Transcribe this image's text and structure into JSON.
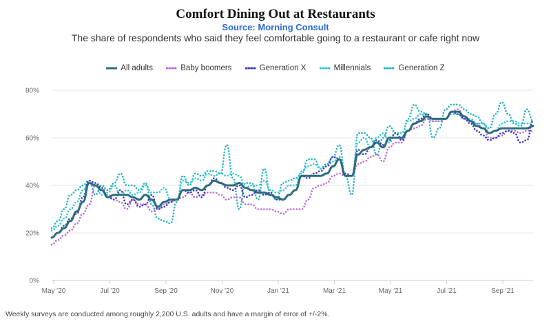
{
  "chart_data": {
    "type": "line",
    "title": "Comfort Dining Out at Restaurants",
    "source": "Source: Morning Consult",
    "subtitle": "The share of respondents who said they feel comfortable going to a restaurant or cafe right now",
    "footnote": "Weekly surveys are conducted among roughly 2,200 U.S. adults and have a margin of error of +/-2%.",
    "y_ticks": [
      "0%",
      "20%",
      "40%",
      "60%",
      "80%"
    ],
    "ylim": [
      0,
      80
    ],
    "x_ticks": [
      "May '20",
      "Jul '20",
      "Sep '20",
      "Nov '20",
      "Jan '21",
      "Mar '21",
      "May '21",
      "Jul '21",
      "Sep '21"
    ],
    "x_range_weeks": [
      0,
      72
    ],
    "grid": true,
    "legend_position": "top-center",
    "series": [
      {
        "name": "All adults",
        "color": "#2e6b7a",
        "style": "solid",
        "values": [
          18,
          20,
          22,
          25,
          29,
          33,
          41,
          40,
          38,
          35,
          36,
          36,
          36,
          35,
          34,
          36,
          34,
          31,
          33,
          34,
          34,
          38,
          38,
          39,
          38,
          40,
          42,
          41,
          40,
          40,
          41,
          39,
          38,
          37,
          37,
          36,
          35,
          34,
          36,
          38,
          44,
          44,
          44,
          44,
          45,
          48,
          51,
          44,
          44,
          53,
          55,
          56,
          58,
          56,
          60,
          60,
          60,
          63,
          66,
          67,
          69,
          68,
          68,
          68,
          71,
          71,
          69,
          67,
          65,
          64,
          62,
          63,
          64,
          64,
          64,
          64,
          64,
          65
        ]
      },
      {
        "name": "Baby boomers",
        "color": "#c06bd6",
        "style": "dotted",
        "values": [
          15,
          17,
          19,
          21,
          24,
          28,
          32,
          40,
          38,
          36,
          34,
          33,
          30,
          34,
          32,
          32,
          29,
          30,
          32,
          33,
          34,
          35,
          37,
          35,
          36,
          37,
          37,
          36,
          34,
          35,
          35,
          32,
          32,
          30,
          30,
          30,
          29,
          28,
          30,
          30,
          30,
          34,
          39,
          40,
          41,
          44,
          45,
          44,
          44,
          49,
          50,
          52,
          53,
          50,
          56,
          58,
          58,
          63,
          64,
          65,
          68,
          67,
          67,
          68,
          71,
          72,
          68,
          67,
          66,
          64,
          60,
          60,
          61,
          63,
          63,
          62,
          63,
          63
        ]
      },
      {
        "name": "Generation X",
        "color": "#3a3ad0",
        "style": "dotted",
        "values": [
          18,
          20,
          23,
          26,
          28,
          35,
          42,
          41,
          39,
          35,
          34,
          38,
          32,
          34,
          31,
          32,
          36,
          30,
          31,
          33,
          34,
          38,
          37,
          38,
          35,
          40,
          43,
          41,
          39,
          38,
          40,
          35,
          36,
          38,
          36,
          37,
          34,
          34,
          36,
          38,
          44,
          43,
          45,
          46,
          48,
          52,
          51,
          45,
          44,
          55,
          53,
          56,
          59,
          57,
          59,
          62,
          59,
          63,
          66,
          68,
          70,
          68,
          68,
          68,
          71,
          70,
          68,
          66,
          63,
          61,
          59,
          60,
          62,
          63,
          62,
          58,
          59,
          67
        ]
      },
      {
        "name": "Millennials",
        "color": "#2ec9d6",
        "style": "dotted",
        "values": [
          21,
          23,
          26,
          30,
          33,
          38,
          41,
          40,
          36,
          37,
          40,
          36,
          38,
          36,
          37,
          40,
          37,
          37,
          39,
          34,
          34,
          42,
          41,
          43,
          42,
          45,
          44,
          45,
          44,
          45,
          44,
          39,
          40,
          40,
          42,
          38,
          37,
          38,
          40,
          40,
          46,
          48,
          49,
          47,
          48,
          50,
          52,
          44,
          44,
          58,
          60,
          56,
          60,
          62,
          58,
          62,
          62,
          67,
          68,
          70,
          69,
          67,
          67,
          68,
          70,
          70,
          68,
          68,
          66,
          66,
          62,
          63,
          66,
          67,
          67,
          66,
          66,
          66
        ]
      },
      {
        "name": "Generation Z",
        "color": "#26b3c4",
        "style": "dotted",
        "values": [
          22,
          25,
          30,
          36,
          38,
          40,
          42,
          36,
          40,
          38,
          41,
          45,
          40,
          40,
          38,
          41,
          32,
          26,
          25,
          24,
          33,
          44,
          40,
          45,
          44,
          46,
          46,
          45,
          57,
          43,
          30,
          41,
          41,
          34,
          47,
          36,
          34,
          41,
          42,
          43,
          45,
          51,
          51,
          47,
          49,
          52,
          57,
          44,
          36,
          62,
          62,
          60,
          53,
          60,
          65,
          62,
          60,
          68,
          74,
          71,
          70,
          60,
          64,
          72,
          74,
          74,
          72,
          70,
          69,
          66,
          64,
          70,
          75,
          70,
          66,
          65,
          72,
          67
        ]
      }
    ]
  }
}
